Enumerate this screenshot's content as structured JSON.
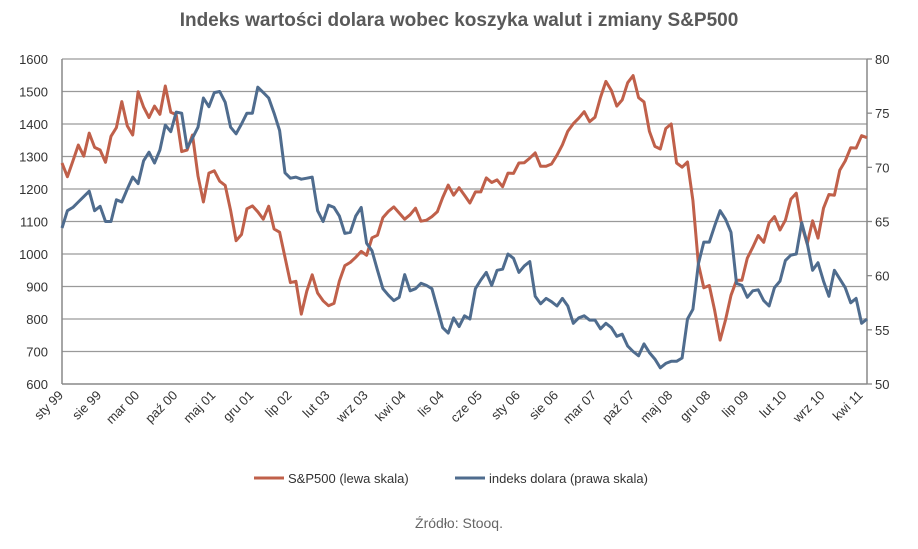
{
  "chart_data": {
    "type": "line",
    "title": "Indeks wartości dolara wobec koszyka walut i zmiany S&P500",
    "source": "Źródło: Stooq.",
    "x_tick_labels": [
      "sty 99",
      "sie 99",
      "mar 00",
      "paź 00",
      "maj 01",
      "gru 01",
      "lip 02",
      "lut 03",
      "wrz 03",
      "kwi 04",
      "lis 04",
      "cze 05",
      "sty 06",
      "sie 06",
      "mar 07",
      "paź 07",
      "maj 08",
      "gru 08",
      "lip 09",
      "lut 10",
      "wrz 10",
      "kwi 11"
    ],
    "x_tick_every_months": 7,
    "y_left": {
      "range": [
        600,
        1600
      ],
      "step": 100,
      "ticks": [
        "600",
        "700",
        "800",
        "900",
        "1000",
        "1100",
        "1200",
        "1300",
        "1400",
        "1500",
        "1600"
      ]
    },
    "y_right": {
      "range": [
        50,
        80
      ],
      "step": 5,
      "ticks": [
        "50",
        "55",
        "60",
        "65",
        "70",
        "75",
        "80"
      ]
    },
    "grid": true,
    "legend_position": "bottom",
    "series": [
      {
        "name": "S&P500 (lewa skala)",
        "axis": "left",
        "color": "#c0604a",
        "values": [
          1280,
          1238,
          1286,
          1335,
          1301,
          1372,
          1328,
          1320,
          1282,
          1362,
          1389,
          1469,
          1394,
          1366,
          1499,
          1452,
          1420,
          1455,
          1430,
          1517,
          1436,
          1429,
          1315,
          1320,
          1366,
          1240,
          1160,
          1249,
          1256,
          1224,
          1211,
          1134,
          1041,
          1060,
          1139,
          1148,
          1130,
          1107,
          1147,
          1077,
          1067,
          990,
          912,
          916,
          815,
          886,
          936,
          880,
          856,
          841,
          848,
          917,
          964,
          974,
          990,
          1008,
          996,
          1050,
          1058,
          1112,
          1131,
          1145,
          1126,
          1107,
          1121,
          1141,
          1101,
          1104,
          1115,
          1130,
          1174,
          1212,
          1181,
          1204,
          1181,
          1157,
          1191,
          1191,
          1234,
          1220,
          1228,
          1207,
          1249,
          1248,
          1280,
          1281,
          1295,
          1311,
          1270,
          1270,
          1277,
          1304,
          1336,
          1378,
          1401,
          1418,
          1438,
          1407,
          1421,
          1482,
          1531,
          1503,
          1455,
          1474,
          1527,
          1549,
          1481,
          1468,
          1378,
          1331,
          1323,
          1386,
          1400,
          1280,
          1267,
          1283,
          1165,
          969,
          896,
          903,
          826,
          735,
          798,
          873,
          919,
          919,
          987,
          1021,
          1057,
          1036,
          1096,
          1115,
          1074,
          1104,
          1169,
          1187,
          1089,
          1031,
          1102,
          1049,
          1141,
          1183,
          1181,
          1258,
          1286,
          1327,
          1326,
          1364,
          1358
        ]
      },
      {
        "name": "indeks dolara (prawa skala)",
        "axis": "right",
        "color": "#4f6c8e",
        "values": [
          64.4,
          66.0,
          66.3,
          66.8,
          67.3,
          67.8,
          66.0,
          66.4,
          65.0,
          65.0,
          67.0,
          66.8,
          68.0,
          69.1,
          68.5,
          70.6,
          71.4,
          70.4,
          71.6,
          73.9,
          73.3,
          75.1,
          75.0,
          71.8,
          72.7,
          73.7,
          76.4,
          75.6,
          76.9,
          77.0,
          76.0,
          73.7,
          73.1,
          74.0,
          75.0,
          75.0,
          77.4,
          76.9,
          76.4,
          75.0,
          73.4,
          69.5,
          69.0,
          69.1,
          68.9,
          69.0,
          69.1,
          66.0,
          65.0,
          66.5,
          66.3,
          65.5,
          63.9,
          64.0,
          65.5,
          66.3,
          63.0,
          62.3,
          60.5,
          58.8,
          58.2,
          57.7,
          58.0,
          60.1,
          58.6,
          58.8,
          59.3,
          59.1,
          58.8,
          57.0,
          55.2,
          54.7,
          56.1,
          55.3,
          56.3,
          56.0,
          58.8,
          59.6,
          60.3,
          59.1,
          60.5,
          60.6,
          62.0,
          61.6,
          60.3,
          60.9,
          61.3,
          58.1,
          57.4,
          57.9,
          57.6,
          57.2,
          57.9,
          57.2,
          55.6,
          56.1,
          56.3,
          55.9,
          55.9,
          55.1,
          55.6,
          55.2,
          54.4,
          54.6,
          53.5,
          53.0,
          52.6,
          53.7,
          52.9,
          52.3,
          51.5,
          51.9,
          52.1,
          52.1,
          52.4,
          56.0,
          56.9,
          61.1,
          63.1,
          63.1,
          64.6,
          66.0,
          65.2,
          64.0,
          59.3,
          59.1,
          58.0,
          58.6,
          58.7,
          57.7,
          57.2,
          58.9,
          59.5,
          61.4,
          61.9,
          62.0,
          64.9,
          63.0,
          60.5,
          61.2,
          59.5,
          58.1,
          60.5,
          59.7,
          58.9,
          57.5,
          57.9,
          55.6,
          56.0
        ]
      }
    ]
  }
}
